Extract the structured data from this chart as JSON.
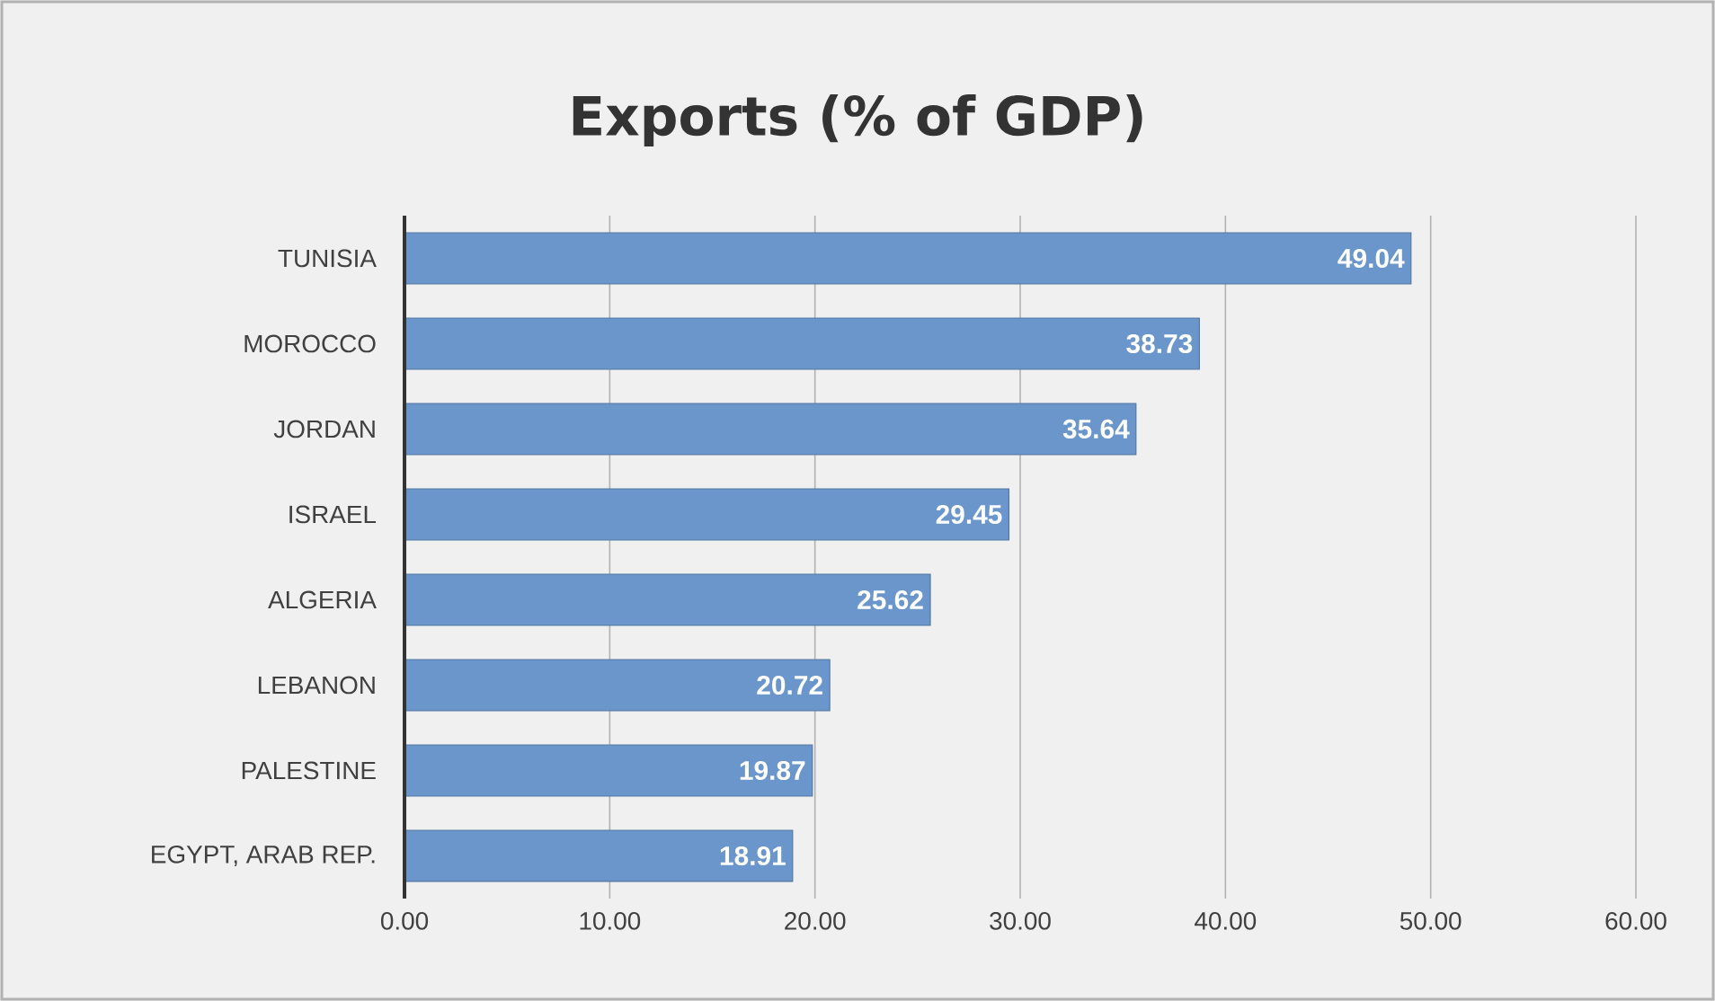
{
  "chart_data": {
    "type": "bar",
    "orientation": "horizontal",
    "title": "Exports (% of GDP)",
    "categories": [
      "TUNISIA",
      "MOROCCO",
      "JORDAN",
      "ISRAEL",
      "ALGERIA",
      "LEBANON",
      "PALESTINE",
      "EGYPT, ARAB REP."
    ],
    "values": [
      49.04,
      38.73,
      35.64,
      29.45,
      25.62,
      20.72,
      19.87,
      18.91
    ],
    "value_labels": [
      "49.04",
      "38.73",
      "35.64",
      "29.45",
      "25.62",
      "20.72",
      "19.87",
      "18.91"
    ],
    "color": "#6a96cb",
    "xlim": [
      0,
      60
    ],
    "xticks": [
      {
        "value": 0,
        "label": "0.00"
      },
      {
        "value": 10,
        "label": "10.00"
      },
      {
        "value": 20,
        "label": "20.00"
      },
      {
        "value": 30,
        "label": "30.00"
      },
      {
        "value": 40,
        "label": "40.00"
      },
      {
        "value": 50,
        "label": "50.00"
      },
      {
        "value": 60,
        "label": "60.00"
      }
    ],
    "grid": "x"
  }
}
